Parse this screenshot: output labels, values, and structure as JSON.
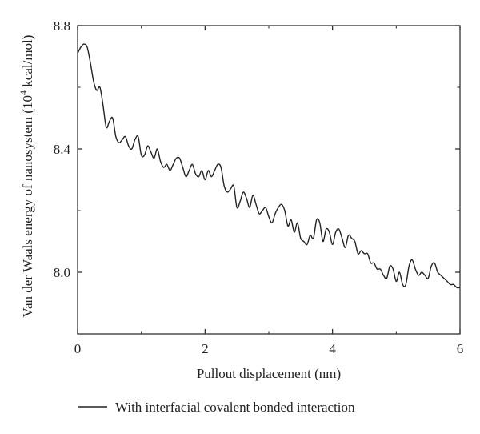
{
  "chart_data": {
    "type": "line",
    "title": "",
    "xlabel": "Pullout displacement (nm)",
    "ylabel_main": "Van der Waals energy of nanosystem (10",
    "ylabel_sup": "4",
    "ylabel_end": " kcal/mol)",
    "xlim": [
      0,
      6
    ],
    "ylim": [
      7.8,
      8.8
    ],
    "x_ticks": [
      0,
      2,
      4,
      6
    ],
    "x_tick_labels": [
      "0",
      "2",
      "4",
      "6"
    ],
    "y_ticks": [
      8.0,
      8.4,
      8.8
    ],
    "y_tick_labels": [
      "8.0",
      "8.4",
      "8.8"
    ],
    "grid": false,
    "legend_position": "bottom",
    "series": [
      {
        "name": "With interfacial covalent bonded interaction",
        "color": "#222222",
        "x": [
          0.0,
          0.05,
          0.1,
          0.15,
          0.2,
          0.25,
          0.3,
          0.35,
          0.4,
          0.45,
          0.5,
          0.55,
          0.6,
          0.65,
          0.7,
          0.75,
          0.8,
          0.85,
          0.9,
          0.95,
          1.0,
          1.05,
          1.1,
          1.15,
          1.2,
          1.25,
          1.3,
          1.35,
          1.4,
          1.45,
          1.5,
          1.55,
          1.6,
          1.65,
          1.7,
          1.75,
          1.8,
          1.85,
          1.9,
          1.95,
          2.0,
          2.05,
          2.1,
          2.15,
          2.2,
          2.25,
          2.3,
          2.35,
          2.4,
          2.45,
          2.5,
          2.55,
          2.6,
          2.65,
          2.7,
          2.75,
          2.8,
          2.85,
          2.9,
          2.95,
          3.0,
          3.05,
          3.1,
          3.15,
          3.2,
          3.25,
          3.3,
          3.35,
          3.4,
          3.45,
          3.5,
          3.55,
          3.6,
          3.65,
          3.7,
          3.75,
          3.8,
          3.85,
          3.9,
          3.95,
          4.0,
          4.05,
          4.1,
          4.15,
          4.2,
          4.25,
          4.3,
          4.35,
          4.4,
          4.45,
          4.5,
          4.55,
          4.6,
          4.65,
          4.7,
          4.75,
          4.8,
          4.85,
          4.9,
          4.95,
          5.0,
          5.05,
          5.1,
          5.15,
          5.2,
          5.25,
          5.3,
          5.35,
          5.4,
          5.45,
          5.5,
          5.55,
          5.6,
          5.65,
          5.7,
          5.75,
          5.8,
          5.85,
          5.9,
          5.95,
          6.0
        ],
        "y": [
          8.71,
          8.73,
          8.74,
          8.73,
          8.68,
          8.62,
          8.59,
          8.6,
          8.54,
          8.47,
          8.49,
          8.5,
          8.44,
          8.42,
          8.43,
          8.44,
          8.41,
          8.4,
          8.43,
          8.44,
          8.38,
          8.38,
          8.41,
          8.39,
          8.37,
          8.4,
          8.36,
          8.34,
          8.35,
          8.33,
          8.35,
          8.37,
          8.37,
          8.34,
          8.31,
          8.33,
          8.35,
          8.32,
          8.31,
          8.33,
          8.3,
          8.33,
          8.31,
          8.33,
          8.35,
          8.34,
          8.28,
          8.26,
          8.27,
          8.28,
          8.21,
          8.23,
          8.26,
          8.24,
          8.21,
          8.25,
          8.22,
          8.19,
          8.2,
          8.21,
          8.18,
          8.16,
          8.19,
          8.21,
          8.22,
          8.2,
          8.15,
          8.17,
          8.13,
          8.16,
          8.11,
          8.1,
          8.09,
          8.12,
          8.11,
          8.17,
          8.16,
          8.1,
          8.14,
          8.13,
          8.09,
          8.13,
          8.14,
          8.11,
          8.08,
          8.12,
          8.11,
          8.1,
          8.06,
          8.07,
          8.06,
          8.06,
          8.03,
          8.03,
          8.01,
          8.01,
          7.99,
          7.98,
          8.02,
          8.01,
          7.97,
          8.0,
          7.96,
          7.96,
          8.02,
          8.04,
          8.01,
          7.99,
          8.0,
          7.99,
          7.98,
          8.02,
          8.03,
          8.0,
          7.99,
          7.98,
          7.97,
          7.96,
          7.96,
          7.95,
          7.95
        ]
      }
    ]
  }
}
